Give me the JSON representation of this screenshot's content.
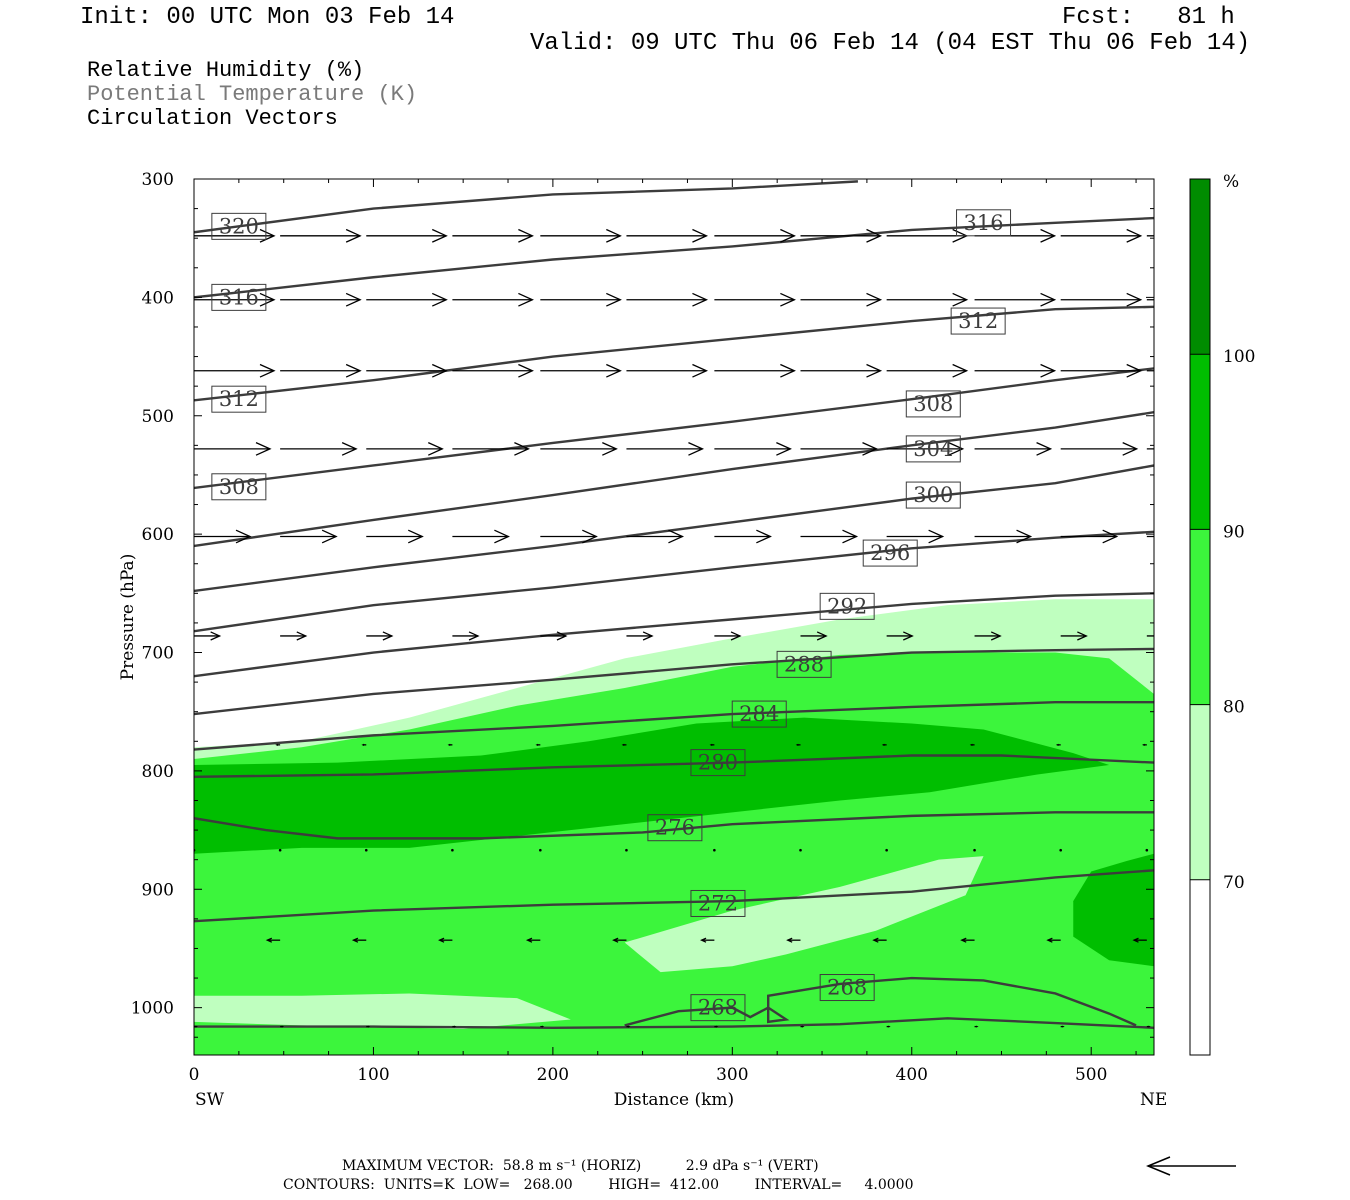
{
  "header": {
    "init": "Init: 00 UTC Mon 03 Feb 14",
    "fcst": "Fcst:   81 h",
    "valid": "Valid: 09 UTC Thu 06 Feb 14 (04 EST Thu 06 Feb 14)"
  },
  "legend": {
    "rh": "Relative Humidity (%)",
    "theta": "Potential Temperature (K)",
    "vectors": "Circulation Vectors"
  },
  "colors": {
    "rh70": "#bfffbf",
    "rh80": "#3cf53c",
    "rh90": "#00be00",
    "rh100": "#008c00",
    "contour": "#3c3c3c"
  },
  "chart_data": {
    "type": "cross-section",
    "xlabel": "Distance (km)",
    "ylabel": "Pressure (hPa)",
    "xlim": [
      0,
      535
    ],
    "ylim": [
      1040,
      300
    ],
    "x_ticks": [
      "0",
      "100",
      "200",
      "300",
      "400",
      "500"
    ],
    "x_tick_values": [
      0,
      100,
      200,
      300,
      400,
      500
    ],
    "y_ticks": [
      "300",
      "400",
      "500",
      "600",
      "700",
      "800",
      "900",
      "1000"
    ],
    "y_tick_values": [
      300,
      400,
      500,
      600,
      700,
      800,
      900,
      1000
    ],
    "endpoints": {
      "left": "SW",
      "right": "NE"
    },
    "colorbar": {
      "unit": "%",
      "levels": [
        "70",
        "80",
        "90",
        "100"
      ],
      "level_values": [
        70,
        80,
        90,
        100
      ]
    },
    "rh_regions": [
      {
        "level": 70,
        "points": [
          [
            0,
            780
          ],
          [
            60,
            775
          ],
          [
            120,
            755
          ],
          [
            180,
            730
          ],
          [
            240,
            705
          ],
          [
            300,
            688
          ],
          [
            360,
            672
          ],
          [
            420,
            660
          ],
          [
            480,
            655
          ],
          [
            535,
            655
          ],
          [
            535,
            1040
          ],
          [
            0,
            1040
          ]
        ]
      },
      {
        "level": 80,
        "points": [
          [
            0,
            790
          ],
          [
            60,
            780
          ],
          [
            120,
            765
          ],
          [
            180,
            745
          ],
          [
            240,
            730
          ],
          [
            300,
            712
          ],
          [
            360,
            702
          ],
          [
            420,
            700
          ],
          [
            480,
            700
          ],
          [
            510,
            705
          ],
          [
            535,
            735
          ],
          [
            535,
            1040
          ],
          [
            0,
            1040
          ]
        ]
      },
      {
        "level": 70,
        "points": [
          [
            240,
            945
          ],
          [
            300,
            918
          ],
          [
            360,
            898
          ],
          [
            415,
            875
          ],
          [
            440,
            872
          ],
          [
            430,
            905
          ],
          [
            380,
            935
          ],
          [
            330,
            955
          ],
          [
            300,
            965
          ],
          [
            260,
            970
          ]
        ]
      },
      {
        "level": 70,
        "points": [
          [
            0,
            990
          ],
          [
            60,
            990
          ],
          [
            120,
            988
          ],
          [
            180,
            992
          ],
          [
            210,
            1010
          ],
          [
            150,
            1018
          ],
          [
            60,
            1015
          ],
          [
            0,
            1012
          ]
        ]
      },
      {
        "level": 90,
        "points": [
          [
            0,
            795
          ],
          [
            80,
            793
          ],
          [
            160,
            787
          ],
          [
            220,
            775
          ],
          [
            280,
            760
          ],
          [
            340,
            755
          ],
          [
            400,
            760
          ],
          [
            440,
            765
          ],
          [
            490,
            785
          ],
          [
            510,
            795
          ],
          [
            470,
            803
          ],
          [
            410,
            818
          ],
          [
            360,
            825
          ],
          [
            300,
            835
          ],
          [
            240,
            845
          ],
          [
            180,
            855
          ],
          [
            120,
            865
          ],
          [
            60,
            865
          ],
          [
            0,
            870
          ]
        ]
      },
      {
        "level": 90,
        "points": [
          [
            535,
            870
          ],
          [
            520,
            876
          ],
          [
            500,
            885
          ],
          [
            490,
            910
          ],
          [
            490,
            940
          ],
          [
            510,
            960
          ],
          [
            535,
            965
          ]
        ]
      }
    ],
    "theta_contours": [
      {
        "label": "320",
        "label_at": [
          25,
          340
        ],
        "points": [
          [
            0,
            345
          ],
          [
            100,
            325
          ],
          [
            200,
            313
          ],
          [
            300,
            308
          ],
          [
            370,
            302
          ]
        ]
      },
      {
        "label": "316",
        "label_at": [
          25,
          400
        ],
        "points": [
          [
            0,
            400
          ],
          [
            100,
            383
          ],
          [
            200,
            368
          ],
          [
            300,
            357
          ],
          [
            400,
            343
          ],
          [
            480,
            337
          ],
          [
            535,
            333
          ]
        ]
      },
      {
        "label": "316",
        "label_at": [
          440,
          337
        ],
        "points": []
      },
      {
        "label": "312",
        "label_at": [
          25,
          486
        ],
        "points": [
          [
            0,
            487
          ],
          [
            100,
            470
          ],
          [
            200,
            450
          ],
          [
            300,
            435
          ],
          [
            400,
            420
          ],
          [
            480,
            410
          ],
          [
            535,
            408
          ]
        ]
      },
      {
        "label": "312",
        "label_at": [
          437,
          420
        ],
        "points": []
      },
      {
        "label": "308",
        "label_at": [
          25,
          560
        ],
        "points": [
          [
            0,
            561
          ],
          [
            100,
            542
          ],
          [
            200,
            523
          ],
          [
            300,
            505
          ],
          [
            400,
            486
          ],
          [
            480,
            470
          ],
          [
            535,
            460
          ]
        ]
      },
      {
        "label": "308",
        "label_at": [
          412,
          490
        ],
        "points": []
      },
      {
        "label": "304",
        "label_at": [
          412,
          528
        ],
        "points": [
          [
            0,
            610
          ],
          [
            100,
            588
          ],
          [
            200,
            567
          ],
          [
            300,
            545
          ],
          [
            400,
            525
          ],
          [
            480,
            510
          ],
          [
            535,
            497
          ]
        ]
      },
      {
        "label": "300",
        "label_at": [
          412,
          567
        ],
        "points": [
          [
            0,
            648
          ],
          [
            100,
            628
          ],
          [
            200,
            610
          ],
          [
            300,
            590
          ],
          [
            400,
            570
          ],
          [
            480,
            557
          ],
          [
            535,
            542
          ]
        ]
      },
      {
        "label": "296",
        "label_at": [
          388,
          616
        ],
        "points": [
          [
            0,
            682
          ],
          [
            100,
            660
          ],
          [
            200,
            645
          ],
          [
            300,
            628
          ],
          [
            400,
            612
          ],
          [
            480,
            603
          ],
          [
            535,
            598
          ]
        ]
      },
      {
        "label": "292",
        "label_at": [
          364,
          661
        ],
        "points": [
          [
            0,
            720
          ],
          [
            100,
            700
          ],
          [
            200,
            685
          ],
          [
            300,
            672
          ],
          [
            400,
            659
          ],
          [
            480,
            652
          ],
          [
            535,
            650
          ]
        ]
      },
      {
        "label": "288",
        "label_at": [
          340,
          710
        ],
        "points": [
          [
            0,
            752
          ],
          [
            100,
            735
          ],
          [
            200,
            723
          ],
          [
            300,
            710
          ],
          [
            400,
            700
          ],
          [
            480,
            698
          ],
          [
            535,
            697
          ]
        ]
      },
      {
        "label": "284",
        "label_at": [
          315,
          752
        ],
        "points": [
          [
            0,
            782
          ],
          [
            100,
            770
          ],
          [
            200,
            762
          ],
          [
            300,
            752
          ],
          [
            400,
            746
          ],
          [
            480,
            742
          ],
          [
            535,
            742
          ]
        ]
      },
      {
        "label": "280",
        "label_at": [
          292,
          793
        ],
        "points": [
          [
            0,
            805
          ],
          [
            100,
            803
          ],
          [
            200,
            797
          ],
          [
            300,
            793
          ],
          [
            400,
            787
          ],
          [
            450,
            787
          ],
          [
            535,
            793
          ]
        ]
      },
      {
        "label": "276",
        "label_at": [
          268,
          848
        ],
        "points": [
          [
            0,
            840
          ],
          [
            40,
            850
          ],
          [
            80,
            857
          ],
          [
            160,
            857
          ],
          [
            250,
            852
          ],
          [
            300,
            845
          ],
          [
            400,
            838
          ],
          [
            480,
            835
          ],
          [
            535,
            835
          ]
        ]
      },
      {
        "label": "272",
        "label_at": [
          292,
          912
        ],
        "points": [
          [
            0,
            927
          ],
          [
            100,
            918
          ],
          [
            200,
            913
          ],
          [
            300,
            910
          ],
          [
            400,
            902
          ],
          [
            480,
            890
          ],
          [
            535,
            884
          ]
        ]
      },
      {
        "label": "268",
        "label_at": [
          292,
          1000
        ],
        "points": [
          [
            240,
            1015
          ],
          [
            270,
            1003
          ],
          [
            300,
            1000
          ],
          [
            310,
            1008
          ],
          [
            320,
            1000
          ],
          [
            330,
            1010
          ],
          [
            320,
            1012
          ],
          [
            320,
            990
          ],
          [
            360,
            980
          ],
          [
            400,
            975
          ],
          [
            440,
            977
          ],
          [
            480,
            988
          ],
          [
            510,
            1005
          ],
          [
            525,
            1015
          ]
        ]
      },
      {
        "label": "268",
        "label_at": [
          364,
          983
        ],
        "points": []
      },
      {
        "label": "",
        "label_at": null,
        "points": [
          [
            0,
            1016
          ],
          [
            100,
            1016
          ],
          [
            200,
            1017
          ],
          [
            300,
            1016
          ],
          [
            360,
            1014
          ],
          [
            420,
            1009
          ],
          [
            480,
            1013
          ],
          [
            535,
            1017
          ]
        ]
      }
    ],
    "vectors": {
      "rows": [
        {
          "p": 348,
          "u": 1.0
        },
        {
          "p": 402,
          "u": 1.0
        },
        {
          "p": 462,
          "u": 1.0
        },
        {
          "p": 528,
          "u": 0.95
        },
        {
          "p": 602,
          "u": 0.7
        },
        {
          "p": 686,
          "u": 0.32
        },
        {
          "p": 778,
          "u": -0.04
        },
        {
          "p": 867,
          "u": -0.02
        },
        {
          "p": 943,
          "u": -0.16
        },
        {
          "p": 1016,
          "u": 0.03
        }
      ],
      "x_positions": [
        0,
        48,
        96,
        144,
        193,
        241,
        290,
        338,
        386,
        435,
        483,
        531
      ]
    },
    "annotations": {
      "max_vector": "MAXIMUM VECTOR:  58.8 m s⁻¹ (HORIZ)          2.9 dPa s⁻¹ (VERT)",
      "contours": "CONTOURS:  UNITS=K  LOW=   268.00        HIGH=  412.00        INTERVAL=     4.0000"
    }
  }
}
